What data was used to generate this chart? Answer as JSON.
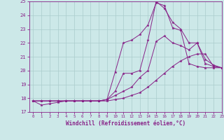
{
  "title": "",
  "xlabel": "Windchill (Refroidissement éolien,°C)",
  "ylabel": "",
  "xlim": [
    -0.5,
    23
  ],
  "ylim": [
    17,
    25
  ],
  "xticks": [
    0,
    1,
    2,
    3,
    4,
    5,
    6,
    7,
    8,
    9,
    10,
    11,
    12,
    13,
    14,
    15,
    16,
    17,
    18,
    19,
    20,
    21,
    22,
    23
  ],
  "yticks": [
    17,
    18,
    19,
    20,
    21,
    22,
    23,
    24,
    25
  ],
  "bg_color": "#cce8e8",
  "line_color": "#882288",
  "grid_color": "#aacccc",
  "lines": [
    {
      "x": [
        0,
        1,
        2,
        3,
        4,
        5,
        6,
        7,
        8,
        9,
        10,
        11,
        12,
        13,
        14,
        15,
        16,
        17,
        18,
        19,
        20,
        21,
        22,
        23
      ],
      "y": [
        17.8,
        17.8,
        17.8,
        17.8,
        17.8,
        17.8,
        17.8,
        17.8,
        17.8,
        17.8,
        17.9,
        18.0,
        18.2,
        18.4,
        18.8,
        19.3,
        19.8,
        20.3,
        20.7,
        21.0,
        21.2,
        21.2,
        20.3,
        20.2
      ]
    },
    {
      "x": [
        0,
        1,
        2,
        3,
        4,
        5,
        6,
        7,
        8,
        9,
        10,
        11,
        12,
        13,
        14,
        15,
        16,
        17,
        18,
        19,
        20,
        21,
        22,
        23
      ],
      "y": [
        17.8,
        17.5,
        17.6,
        17.7,
        17.8,
        17.8,
        17.8,
        17.8,
        17.8,
        17.9,
        18.2,
        18.5,
        18.8,
        19.5,
        20.0,
        22.1,
        22.5,
        22.0,
        21.8,
        21.5,
        22.0,
        20.8,
        20.4,
        20.2
      ]
    },
    {
      "x": [
        0,
        1,
        2,
        3,
        4,
        5,
        6,
        7,
        8,
        9,
        10,
        11,
        12,
        13,
        14,
        15,
        16,
        17,
        18,
        19,
        20,
        21,
        22,
        23
      ],
      "y": [
        17.8,
        17.8,
        17.8,
        17.8,
        17.8,
        17.8,
        17.8,
        17.8,
        17.8,
        17.9,
        19.9,
        22.0,
        22.2,
        22.6,
        23.3,
        24.9,
        24.7,
        23.1,
        22.9,
        20.5,
        20.3,
        20.2,
        20.2,
        20.2
      ]
    },
    {
      "x": [
        0,
        1,
        2,
        3,
        4,
        5,
        6,
        7,
        8,
        9,
        10,
        11,
        12,
        13,
        14,
        15,
        16,
        17,
        18,
        19,
        20,
        21,
        22,
        23
      ],
      "y": [
        17.8,
        17.8,
        17.8,
        17.8,
        17.8,
        17.8,
        17.8,
        17.8,
        17.8,
        17.9,
        18.5,
        19.8,
        19.8,
        20.0,
        22.2,
        25.0,
        24.5,
        23.5,
        23.0,
        22.0,
        22.0,
        20.5,
        20.3,
        20.2
      ]
    }
  ]
}
